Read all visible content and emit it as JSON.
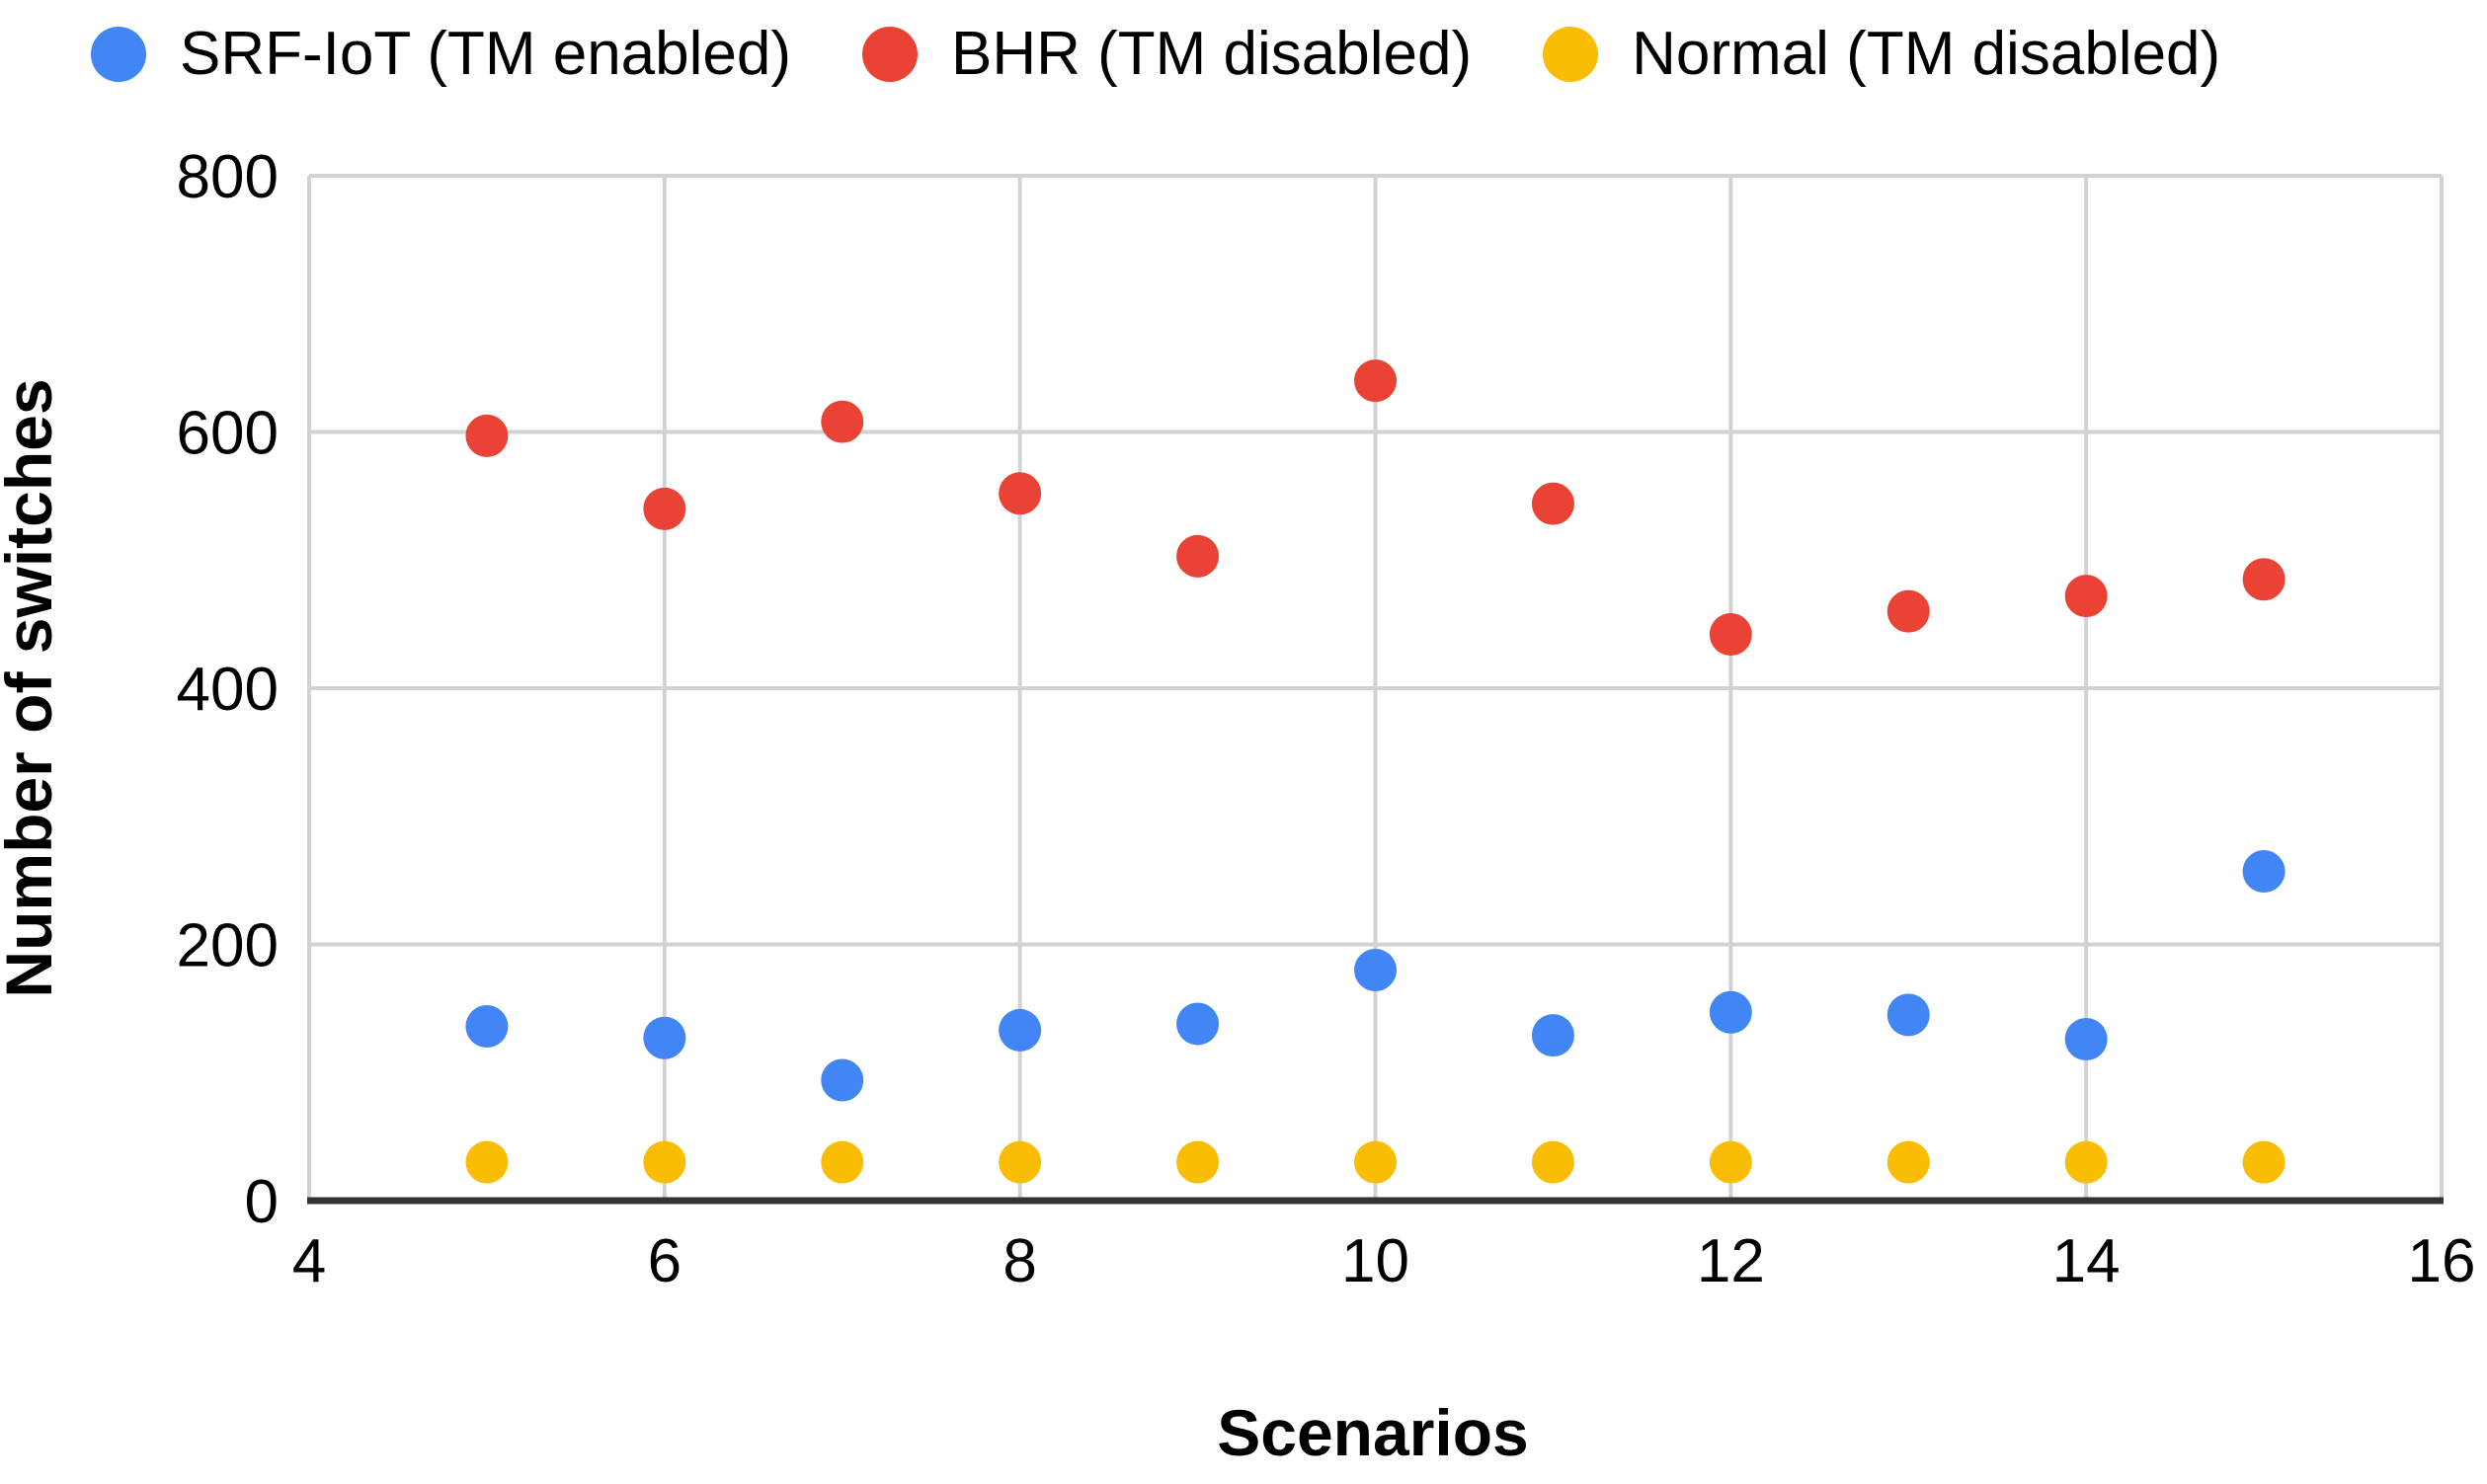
{
  "chart_data": {
    "type": "scatter",
    "title": "",
    "xlabel": "Scenarios",
    "ylabel": "Number of switches",
    "xlim": [
      4,
      16
    ],
    "ylim": [
      0,
      800
    ],
    "x_ticks": [
      4,
      6,
      8,
      10,
      12,
      14,
      16
    ],
    "y_ticks": [
      0,
      200,
      400,
      600,
      800
    ],
    "grid": true,
    "legend_position": "top-left",
    "x": [
      5,
      6,
      7,
      8,
      9,
      10,
      11,
      12,
      13,
      14,
      15
    ],
    "series": [
      {
        "name": "SRF-IoT (TM enabled)",
        "color": "#4285F4",
        "values": [
          136,
          127,
          94,
          133,
          138,
          180,
          129,
          147,
          145,
          126,
          257
        ]
      },
      {
        "name": "BHR (TM disabled)",
        "color": "#EA4335",
        "values": [
          597,
          540,
          608,
          552,
          503,
          640,
          544,
          442,
          460,
          472,
          485
        ]
      },
      {
        "name": "Normal (TM disabled)",
        "color": "#FBBC04",
        "values": [
          30,
          30,
          30,
          30,
          30,
          30,
          30,
          30,
          30,
          30,
          30
        ]
      }
    ],
    "colors": {
      "gridline": "#d2d2d2",
      "axis_line": "#333333",
      "text": "#000000",
      "background": "#ffffff"
    }
  }
}
